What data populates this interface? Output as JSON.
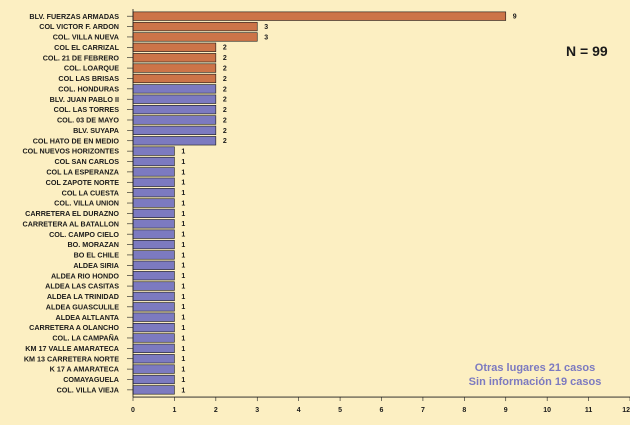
{
  "annotations": {
    "n_label": "N = 99",
    "note_line1": "Otras lugares 21 casos",
    "note_line2": "Sin información 19 casos"
  },
  "colors": {
    "background": "#FCEFC2",
    "bar_orange": "#CC7448",
    "bar_purple": "#7C7AC0",
    "note_text": "#7C7AC0",
    "axis": "#1a1a1a"
  },
  "chart_data": {
    "type": "bar",
    "orientation": "horizontal",
    "title": "",
    "xlabel": "",
    "ylabel": "",
    "xlim": [
      0,
      12
    ],
    "x_ticks": [
      0,
      1,
      2,
      3,
      4,
      5,
      6,
      7,
      8,
      9,
      10,
      11,
      12
    ],
    "grid": false,
    "categories": [
      "BLV. FUERZAS ARMADAS",
      "COL VICTOR F. ARDON",
      "COL. VILLA NUEVA",
      "COL EL CARRIZAL",
      "COL. 21 DE FEBRERO",
      "COL. LOARQUE",
      "COL LAS BRISAS",
      "COL. HONDURAS",
      "BLV. JUAN PABLO II",
      "COL. LAS TORRES",
      "COL. 03 DE MAYO",
      "BLV. SUYAPA",
      "COL HATO DE EN MEDIO",
      "COL NUEVOS HORIZONTES",
      "COL SAN CARLOS",
      "COL LA ESPERANZA",
      "COL ZAPOTE NORTE",
      "COL LA CUESTA",
      "COL.  VILLA UNION",
      "CARRETERA EL DURAZNO",
      "CARRETERA  AL BATALLON",
      "COL. CAMPO CIELO",
      "BO. MORAZAN",
      "BO EL CHILE",
      "ALDEA SIRIA",
      "ALDEA RIO HONDO",
      "ALDEA LAS CASITAS",
      "ALDEA LA TRINIDAD",
      "ALDEA GUASCULILE",
      "ALDEA ALTLANTA",
      "CARRETERA A OLANCHO",
      "COL. LA CAMPAÑA",
      "KM 17 VALLE AMARATECA",
      "KM 13 CARRETERA NORTE",
      "K 17 A AMARATECA",
      "COMAYAGUELA",
      "COL. VILLA VIEJA"
    ],
    "values": [
      9,
      3,
      3,
      2,
      2,
      2,
      2,
      2,
      2,
      2,
      2,
      2,
      2,
      1,
      1,
      1,
      1,
      1,
      1,
      1,
      1,
      1,
      1,
      1,
      1,
      1,
      1,
      1,
      1,
      1,
      1,
      1,
      1,
      1,
      1,
      1,
      1
    ],
    "bar_colors": [
      "#CC7448",
      "#CC7448",
      "#CC7448",
      "#CC7448",
      "#CC7448",
      "#CC7448",
      "#CC7448",
      "#7C7AC0",
      "#7C7AC0",
      "#7C7AC0",
      "#7C7AC0",
      "#7C7AC0",
      "#7C7AC0",
      "#7C7AC0",
      "#7C7AC0",
      "#7C7AC0",
      "#7C7AC0",
      "#7C7AC0",
      "#7C7AC0",
      "#7C7AC0",
      "#7C7AC0",
      "#7C7AC0",
      "#7C7AC0",
      "#7C7AC0",
      "#7C7AC0",
      "#7C7AC0",
      "#7C7AC0",
      "#7C7AC0",
      "#7C7AC0",
      "#7C7AC0",
      "#7C7AC0",
      "#7C7AC0",
      "#7C7AC0",
      "#7C7AC0",
      "#7C7AC0",
      "#7C7AC0",
      "#7C7AC0"
    ]
  }
}
